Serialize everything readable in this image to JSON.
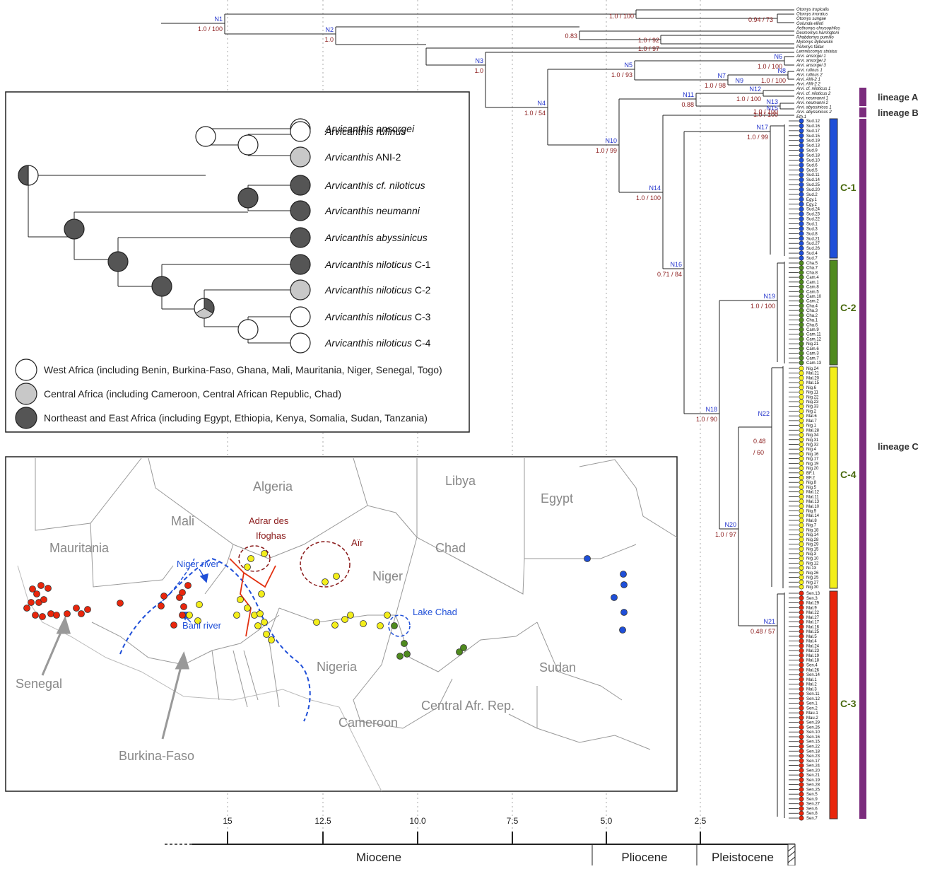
{
  "nodes": [
    {
      "id": "N1",
      "support": "1.0 / 100"
    },
    {
      "id": "N2",
      "support": "1.0"
    },
    {
      "id": "N3",
      "support": "1.0"
    },
    {
      "id": "N4",
      "support": "1.0 / 54"
    },
    {
      "id": "N5",
      "support": "1.0 / 93"
    },
    {
      "id": "N6",
      "support": "1.0 / 100"
    },
    {
      "id": "N7",
      "support": "1.0 / 98"
    },
    {
      "id": "N8",
      "support": "1.0 / 100"
    },
    {
      "id": "N9",
      "support": ""
    },
    {
      "id": "N10",
      "support": "1.0 / 99"
    },
    {
      "id": "N11",
      "support": "0.88"
    },
    {
      "id": "N12",
      "support": "1.0 / 100"
    },
    {
      "id": "N13",
      "support": "1.0 / 100"
    },
    {
      "id": "N14",
      "support": "1.0 / 100"
    },
    {
      "id": "N15",
      "support": "1.0 / 100"
    },
    {
      "id": "N16",
      "support": "0.71 / 84"
    },
    {
      "id": "N17",
      "support": "1.0 / 99"
    },
    {
      "id": "N18",
      "support": "1.0 / 90"
    },
    {
      "id": "N19",
      "support": "1.0 / 100"
    },
    {
      "id": "N20",
      "support": "1.0 / 97"
    },
    {
      "id": "N21",
      "support": "0.48 / 57"
    },
    {
      "id": "N22",
      "support": "0.48 / 60"
    }
  ],
  "outgroup_support": [
    "1.0 / 100",
    "0.94 / 73",
    "0.83",
    "1.0 / 92",
    "1.0 / 97"
  ],
  "outgroup_taxa": [
    "Otomys tropicalis",
    "Otomys irroratus",
    "Otomys sungae",
    "Golunda ellioti",
    "Aethomys chrysophilus",
    "Desmomys harringtoni",
    "Rhabdomys pumilio",
    "Mylomys dybowskii",
    "Pelomys fallax",
    "Lemniscomys striatus"
  ],
  "arvi_taxa": [
    "Arvi. ansorgei 1",
    "Arvi. ansorgei 2",
    "Arvi. ansorgei 3",
    "Arvi. rufinus 1",
    "Arvi. rufinus 2",
    "Arvi. ANI-2 1",
    "Arvi. ANI-2 2",
    "Arvi. cf. niloticus 1",
    "Arvi. cf. niloticus 2",
    "Arvi. neumanni 1",
    "Arvi. neumanni 2",
    "Arvi. abyssinicus 1",
    "Arvi. abyssinicus 2",
    "Eth.1"
  ],
  "clades": [
    {
      "label": "C-1",
      "color": "#1f4fd8",
      "taxa": [
        "Sud.12",
        "Sud.16",
        "Sud.17",
        "Sud.15",
        "Sud.19",
        "Sud.13",
        "Sud.9",
        "Sud.18",
        "Sud.10",
        "Sud.6",
        "Sud.5",
        "Sud.11",
        "Sud.14",
        "Sud.25",
        "Sud.20",
        "Sud.2",
        "Egy.1",
        "Egy.2",
        "Sud.24",
        "Sud.23",
        "Sud.22",
        "Sud.1",
        "Sud.3",
        "Sud.8",
        "Sud.21",
        "Sud.27",
        "Sud.26",
        "Sud.4",
        "Sud.7"
      ]
    },
    {
      "label": "C-2",
      "color": "#4f8a1e",
      "taxa": [
        "Cha.5",
        "Cha.7",
        "Cha.8",
        "Cam.4",
        "Cam.1",
        "Cam.8",
        "Cam.5",
        "Cam.10",
        "Cam.2",
        "Cha.4",
        "Cha.3",
        "Cha.2",
        "Cha.1",
        "Cha.6",
        "Cam.9",
        "Cam.11",
        "Cam.12",
        "Nig.21",
        "Cam.6",
        "Cam.3",
        "Cam.7",
        "Cam.13"
      ]
    },
    {
      "label": "C-4",
      "color": "#f3ee1a",
      "taxa": [
        "Nig.24",
        "Mal.21",
        "Mal.20",
        "Mal.15",
        "Nig.6",
        "Nig.11",
        "Nig.22",
        "Nig.23",
        "Nig.33",
        "Nig.2",
        "Mal.6",
        "Mal.7",
        "Nig.1",
        "Mal.28",
        "Nig.34",
        "Nig.31",
        "Nig.32",
        "Nig.4",
        "Nig.16",
        "Nig.17",
        "Nig.19",
        "Nig.20",
        "BF.1",
        "BF.2",
        "Nig.8",
        "Nig.5",
        "Mal.12",
        "Mal.11",
        "Mal.13",
        "Mal.10",
        "Nig.9",
        "Mal.14",
        "Mal.8",
        "Nig.7",
        "Nig.18",
        "Nig.14",
        "Nig.28",
        "Nig.29",
        "Nig.15",
        "Nig.3",
        "Nig.10",
        "Nig.12",
        "Ni.13",
        "Nig.26",
        "Nig.25",
        "Nig.27",
        "Nig.30"
      ]
    },
    {
      "label": "C-3",
      "color": "#e8260c",
      "taxa": [
        "Sen.13",
        "Sen.3",
        "Mal.29",
        "Mal.9",
        "Mal.22",
        "Mal.27",
        "Mal.17",
        "Mal.16",
        "Mal.25",
        "Mal.5",
        "Mal.4",
        "Mal.24",
        "Mal.23",
        "Mal.19",
        "Mal.18",
        "Sen.4",
        "Mal.26",
        "Sen.14",
        "Mal.1",
        "Mal.2",
        "Mal.3",
        "Sen.11",
        "Sen.12",
        "Sen.1",
        "Sen.2",
        "Mau.1",
        "Mau.2",
        "Sen.29",
        "Sen.26",
        "Sen.10",
        "Sen.16",
        "Sen.15",
        "Sen.22",
        "Sen.18",
        "Sen.23",
        "Sen.17",
        "Sen.24",
        "Sen.20",
        "Sen.21",
        "Sen.19",
        "Sen.28",
        "Sen.25",
        "Sen.5",
        "Sen.9",
        "Sen.27",
        "Sen.6",
        "Sen.8",
        "Sen.7"
      ]
    }
  ],
  "lineages": {
    "a": "lineage A",
    "b": "lineage B",
    "c": "lineage C",
    "color": "#7b2c7d"
  },
  "inset": {
    "taxa": [
      "Arvicanthis ansorgei",
      "Arvicanthis rufinus",
      "Arvicanthis ANI-2",
      "Arvicanthis cf. niloticus",
      "Arvicanthis neumanni",
      "Arvicanthis abyssinicus",
      "Arvicanthis niloticus C-1",
      "Arvicanthis niloticus C-2",
      "Arvicanthis niloticus C-3",
      "Arvicanthis niloticus C-4"
    ],
    "legend": [
      "West Africa (including Benin, Burkina-Faso, Ghana, Mali, Mauritania, Niger, Senegal, Togo)",
      "Central Africa (including Cameroon, Central African Republic, Chad)",
      "Northeast and East Africa (including Egypt, Ethiopia, Kenya, Somalia, Sudan, Tanzania)"
    ],
    "colors": {
      "west": "#ffffff",
      "central": "#c8c8c8",
      "east": "#555555"
    }
  },
  "map": {
    "countries": {
      "algeria": "Algeria",
      "libya": "Libya",
      "egypt": "Egypt",
      "mali": "Mali",
      "mauritania": "Mauritania",
      "chad": "Chad",
      "niger": "Niger",
      "nigeria": "Nigeria",
      "sudan": "Sudan",
      "cameroon": "Cameroon",
      "car": "Central Afr. Rep.",
      "senegal": "Senegal",
      "burkina": "Burkina-Faso"
    },
    "features": {
      "adrar": "Adrar des Ifoghas",
      "air": "Aïr",
      "niger_river": "Niger river",
      "bani_river": "Bani river",
      "lake_chad": "Lake Chad"
    }
  },
  "axis": {
    "ticks": [
      "15",
      "12.5",
      "10.0",
      "7.5",
      "5.0",
      "2.5"
    ],
    "epochs": [
      "Miocene",
      "Pliocene",
      "Pleistocene"
    ]
  }
}
